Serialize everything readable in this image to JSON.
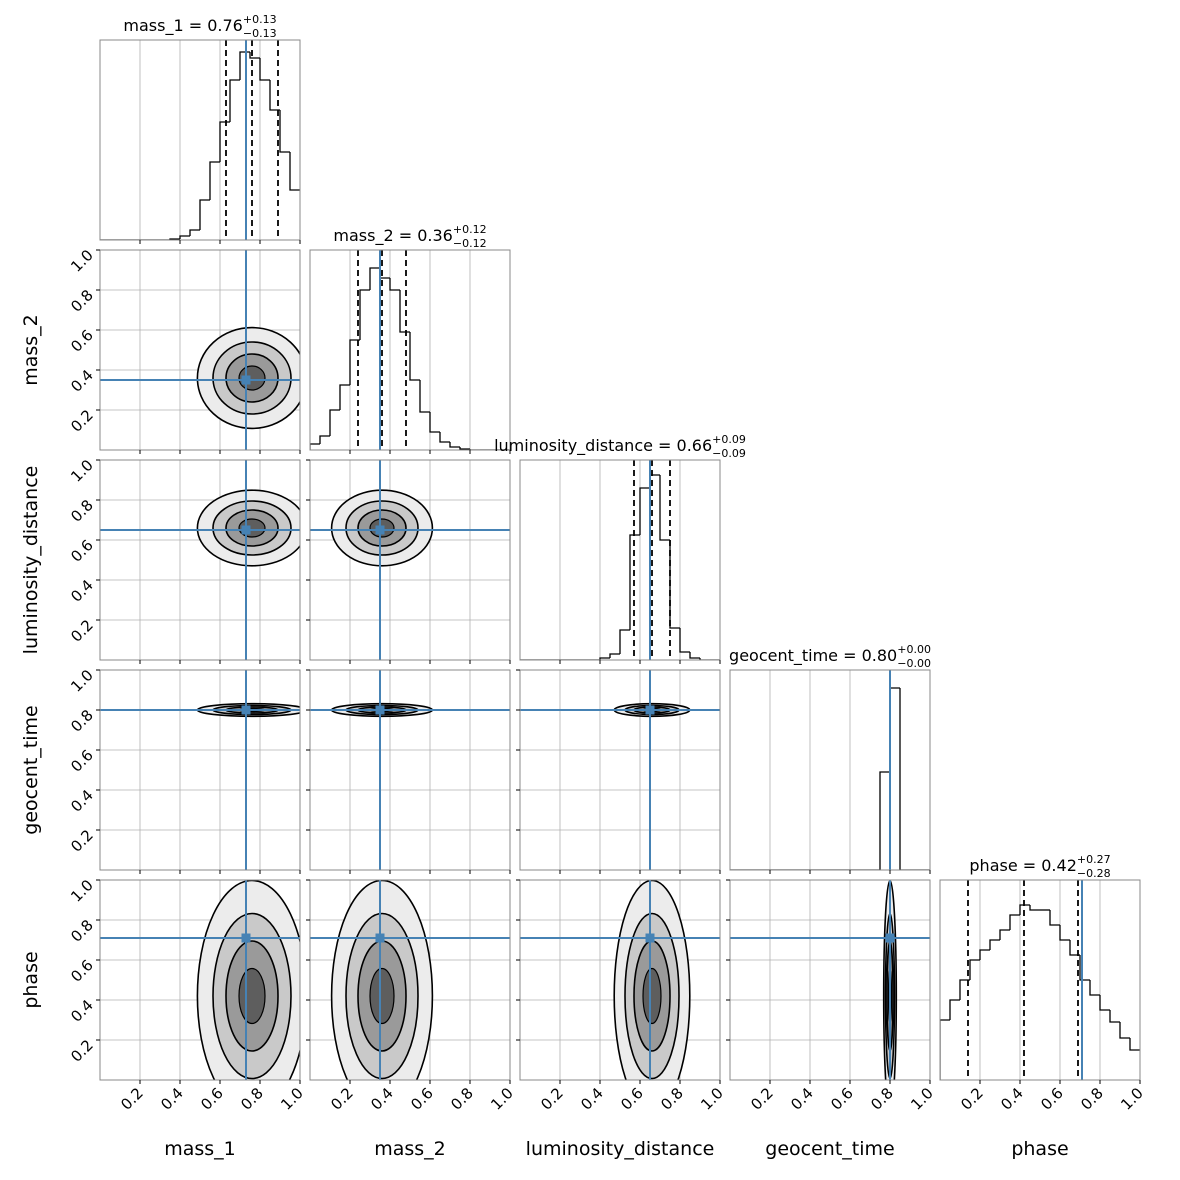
{
  "chart_data": {
    "type": "corner",
    "params": [
      {
        "name": "mass_1",
        "title": "mass_1 = 0.76",
        "plus_label": "+0.13",
        "minus_label": "−0.13",
        "median": 0.76,
        "plus": 0.13,
        "minus": 0.13,
        "truth": 0.73,
        "counts": [
          0,
          0,
          0,
          0,
          0,
          0,
          0,
          1,
          4,
          10,
          40,
          78,
          118,
          160,
          188,
          182,
          160,
          130,
          88,
          50
        ]
      },
      {
        "name": "mass_2",
        "title": "mass_2 = 0.36",
        "plus_label": "+0.12",
        "minus_label": "−0.12",
        "median": 0.36,
        "plus": 0.12,
        "minus": 0.12,
        "truth": 0.35,
        "counts": [
          6,
          14,
          40,
          65,
          110,
          160,
          182,
          172,
          160,
          118,
          70,
          38,
          18,
          8,
          3,
          1,
          0,
          0,
          0,
          0
        ]
      },
      {
        "name": "luminosity_distance",
        "title": "luminosity_distance = 0.66",
        "plus_label": "+0.09",
        "minus_label": "−0.09",
        "median": 0.66,
        "plus": 0.09,
        "minus": 0.09,
        "truth": 0.65,
        "counts": [
          0,
          0,
          0,
          0,
          0,
          0,
          0,
          0,
          2,
          6,
          30,
          125,
          172,
          185,
          120,
          32,
          8,
          2,
          0,
          0
        ]
      },
      {
        "name": "geocent_time",
        "title": "geocent_time = 0.80",
        "plus_label": "+0.00",
        "minus_label": "−0.00",
        "median": 0.8,
        "plus": 0,
        "minus": 0,
        "truth": 0.8,
        "counts": [
          0,
          0,
          0,
          0,
          0,
          0,
          0,
          0,
          0,
          0,
          0,
          0,
          0,
          0,
          0,
          98,
          182,
          0,
          0,
          0
        ]
      },
      {
        "name": "phase",
        "title": "phase = 0.42",
        "plus_label": "+0.27",
        "minus_label": "−0.28",
        "median": 0.42,
        "plus": 0.27,
        "minus": 0.28,
        "truth": 0.71,
        "counts": [
          60,
          80,
          100,
          120,
          130,
          140,
          150,
          165,
          175,
          170,
          170,
          155,
          140,
          125,
          100,
          85,
          70,
          58,
          42,
          30
        ]
      }
    ],
    "bins": [
      0,
      0.05,
      0.1,
      0.15,
      0.2,
      0.25,
      0.3,
      0.35,
      0.4,
      0.45,
      0.5,
      0.55,
      0.6,
      0.65,
      0.7,
      0.75,
      0.8,
      0.85,
      0.9,
      0.95,
      1
    ],
    "lim": [
      0,
      1
    ],
    "ticks": [
      0.2,
      0.4,
      0.6,
      0.8,
      {
        "value": 1,
        "label": "1.0"
      }
    ],
    "hist_ylim": [
      0,
      200
    ],
    "grid": true,
    "truth_color": "#4682b4"
  }
}
